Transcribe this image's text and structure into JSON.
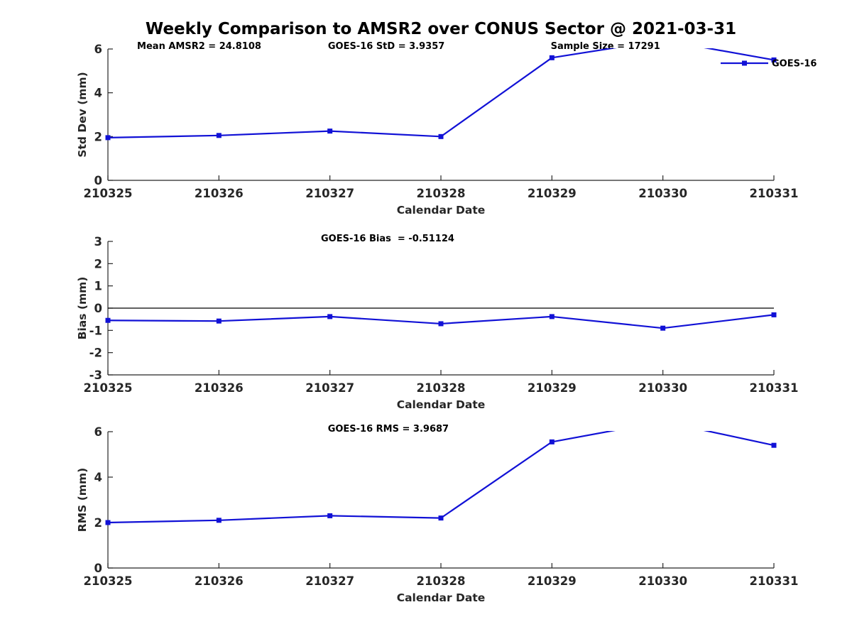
{
  "figure": {
    "title": "Weekly Comparison to AMSR2 over CONUS Sector @ 2021-03-31",
    "background_color": "#ffffff",
    "line_color": "#1111d6",
    "axis_color": "#262626",
    "text_color": "#000000"
  },
  "chart_data": [
    {
      "type": "line",
      "categories": [
        "210325",
        "210326",
        "210327",
        "210328",
        "210329",
        "210330",
        "210331"
      ],
      "series": [
        {
          "name": "GOES-16",
          "values": [
            1.95,
            2.05,
            2.25,
            2.0,
            5.6,
            6.4,
            5.5
          ]
        }
      ],
      "title": "",
      "xlabel": "Calendar Date",
      "ylabel": "Std Dev (mm)",
      "ylim": [
        0,
        6
      ],
      "yticks": [
        0,
        2,
        4,
        6
      ],
      "grid": false,
      "annotations": [
        "Mean AMSR2 = 24.8108",
        "GOES-16 StD = 3.9357",
        "Sample Size = 17291"
      ],
      "legend": {
        "label": "GOES-16",
        "position": "top-right",
        "box": false
      },
      "note_clipping": "value at 210330 exceeds y-axis max and is clipped at 6"
    },
    {
      "type": "line",
      "categories": [
        "210325",
        "210326",
        "210327",
        "210328",
        "210329",
        "210330",
        "210331"
      ],
      "series": [
        {
          "name": "GOES-16",
          "values": [
            -0.55,
            -0.58,
            -0.38,
            -0.7,
            -0.38,
            -0.9,
            -0.3
          ]
        }
      ],
      "title": "",
      "xlabel": "Calendar Date",
      "ylabel": "Bias (mm)",
      "ylim": [
        -3,
        3
      ],
      "yticks": [
        -3,
        -2,
        -1,
        0,
        1,
        2,
        3
      ],
      "grid": false,
      "zero_line": true,
      "annotations": [
        "GOES-16 Bias  = -0.51124"
      ]
    },
    {
      "type": "line",
      "categories": [
        "210325",
        "210326",
        "210327",
        "210328",
        "210329",
        "210330",
        "210331"
      ],
      "series": [
        {
          "name": "GOES-16",
          "values": [
            2.0,
            2.1,
            2.3,
            2.2,
            5.55,
            6.45,
            5.4
          ]
        }
      ],
      "title": "",
      "xlabel": "Calendar Date",
      "ylabel": "RMS (mm)",
      "ylim": [
        0,
        6
      ],
      "yticks": [
        0,
        2,
        4,
        6
      ],
      "grid": false,
      "annotations": [
        "GOES-16 RMS = 3.9687"
      ]
    }
  ]
}
